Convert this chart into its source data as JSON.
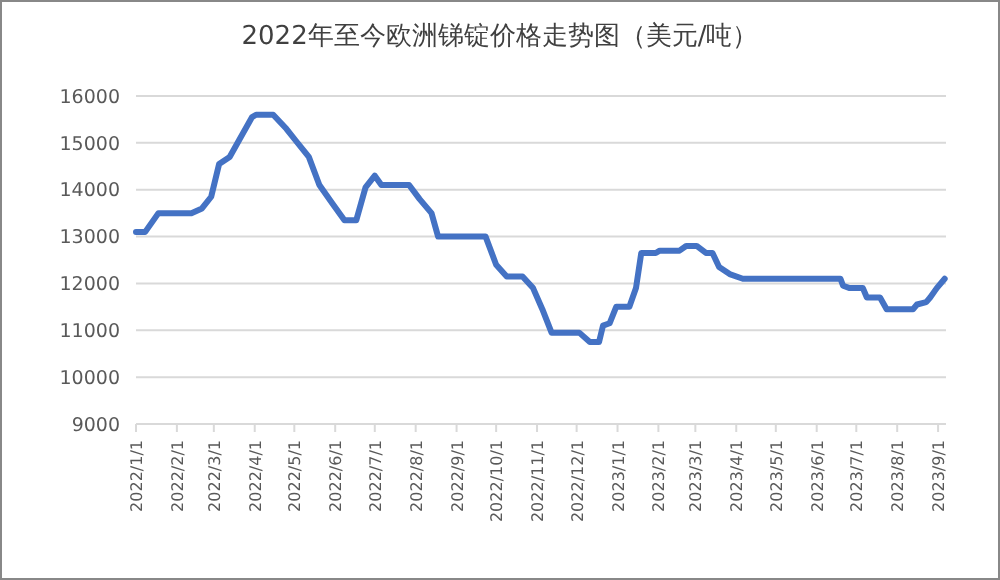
{
  "chart_data": {
    "type": "line",
    "title": "2022年至今欧洲锑锭价格走势图（美元/吨）",
    "x": [
      "2022-01-01",
      "2022-01-08",
      "2022-01-18",
      "2022-02-12",
      "2022-02-20",
      "2022-02-27",
      "2022-03-05",
      "2022-03-13",
      "2022-03-20",
      "2022-03-30",
      "2022-04-02",
      "2022-04-15",
      "2022-04-25",
      "2022-05-02",
      "2022-05-12",
      "2022-05-20",
      "2022-05-30",
      "2022-06-08",
      "2022-06-17",
      "2022-06-24",
      "2022-07-01",
      "2022-07-06",
      "2022-07-27",
      "2022-08-04",
      "2022-08-13",
      "2022-08-18",
      "2022-09-23",
      "2022-10-01",
      "2022-10-09",
      "2022-10-21",
      "2022-10-29",
      "2022-11-05",
      "2022-11-12",
      "2022-12-03",
      "2022-12-11",
      "2022-12-18",
      "2022-12-21",
      "2022-12-26",
      "2022-12-31",
      "2023-01-10",
      "2023-01-15",
      "2023-01-19",
      "2023-01-30",
      "2023-02-02",
      "2023-02-17",
      "2023-02-22",
      "2023-03-02",
      "2023-03-09",
      "2023-03-14",
      "2023-03-19",
      "2023-03-27",
      "2023-04-06",
      "2023-06-19",
      "2023-06-21",
      "2023-06-26",
      "2023-07-06",
      "2023-07-09",
      "2023-07-19",
      "2023-07-24",
      "2023-08-13",
      "2023-08-16",
      "2023-08-23",
      "2023-08-26",
      "2023-08-31",
      "2023-09-06"
    ],
    "series": [
      {
        "color": "#4472c4",
        "values": [
          13100,
          13100,
          13500,
          13500,
          13600,
          13850,
          14550,
          14700,
          15050,
          15550,
          15600,
          15600,
          15300,
          15050,
          14700,
          14100,
          13700,
          13350,
          13350,
          14050,
          14300,
          14100,
          14100,
          13800,
          13500,
          13000,
          13000,
          12400,
          12150,
          12150,
          11900,
          11450,
          10950,
          10950,
          10750,
          10750,
          11100,
          11150,
          11500,
          11500,
          11900,
          12650,
          12650,
          12700,
          12700,
          12800,
          12800,
          12650,
          12650,
          12350,
          12200,
          12100,
          12100,
          11950,
          11900,
          11900,
          11700,
          11700,
          11450,
          11450,
          11550,
          11600,
          11700,
          11900,
          12100
        ]
      }
    ],
    "xlim": [
      "2022-01-01",
      "2023-09-07"
    ],
    "xticks": [
      {
        "value": "2022-01-01",
        "label": "2022/1/1"
      },
      {
        "value": "2022-02-01",
        "label": "2022/2/1"
      },
      {
        "value": "2022-03-01",
        "label": "2022/3/1"
      },
      {
        "value": "2022-04-01",
        "label": "2022/4/1"
      },
      {
        "value": "2022-05-01",
        "label": "2022/5/1"
      },
      {
        "value": "2022-06-01",
        "label": "2022/6/1"
      },
      {
        "value": "2022-07-01",
        "label": "2022/7/1"
      },
      {
        "value": "2022-08-01",
        "label": "2022/8/1"
      },
      {
        "value": "2022-09-01",
        "label": "2022/9/1"
      },
      {
        "value": "2022-10-01",
        "label": "2022/10/1"
      },
      {
        "value": "2022-11-01",
        "label": "2022/11/1"
      },
      {
        "value": "2022-12-01",
        "label": "2022/12/1"
      },
      {
        "value": "2023-01-01",
        "label": "2023/1/1"
      },
      {
        "value": "2023-02-01",
        "label": "2023/2/1"
      },
      {
        "value": "2023-03-01",
        "label": "2023/3/1"
      },
      {
        "value": "2023-04-01",
        "label": "2023/4/1"
      },
      {
        "value": "2023-05-01",
        "label": "2023/5/1"
      },
      {
        "value": "2023-06-01",
        "label": "2023/6/1"
      },
      {
        "value": "2023-07-01",
        "label": "2023/7/1"
      },
      {
        "value": "2023-08-01",
        "label": "2023/8/1"
      },
      {
        "value": "2023-09-01",
        "label": "2023/9/1"
      }
    ],
    "ylim": [
      9000,
      16000
    ],
    "yticks": [
      9000,
      10000,
      11000,
      12000,
      13000,
      14000,
      15000,
      16000
    ],
    "grid": "y",
    "marker": "none",
    "line_style": "solid"
  }
}
